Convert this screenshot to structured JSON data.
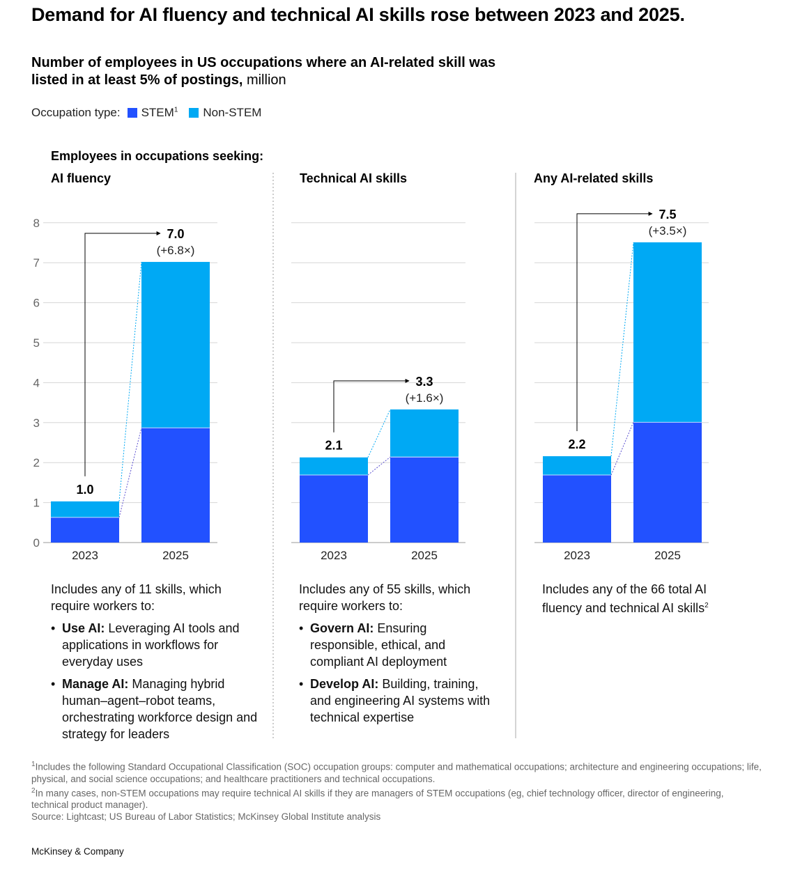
{
  "title": "Demand for AI fluency and technical AI skills rose between 2023 and 2025.",
  "subtitle": {
    "bold": "Number of employees in US occupations where an AI-related skill was listed in at least 5% of postings,",
    "unit": " million"
  },
  "legend": {
    "label": "Occupation type:",
    "items": [
      {
        "name": "STEM",
        "sup": "1",
        "color": "#2251FF"
      },
      {
        "name": "Non-STEM",
        "sup": "",
        "color": "#00A9F4"
      }
    ]
  },
  "seeking_label": "Employees in occupations seeking:",
  "chart_data": {
    "type": "bar",
    "stacked": true,
    "ylim": [
      0,
      8
    ],
    "yticks": [
      "0",
      "1",
      "2",
      "3",
      "4",
      "5",
      "6",
      "7",
      "8"
    ],
    "categories": [
      "2023",
      "2025"
    ],
    "panels": [
      {
        "title": "AI fluency",
        "stem": [
          0.63,
          2.87
        ],
        "non_stem": [
          0.4,
          4.15
        ],
        "totals": [
          "1.0",
          "7.0"
        ],
        "growth": "(+6.8×)"
      },
      {
        "title": "Technical AI skills",
        "stem": [
          1.69,
          2.14
        ],
        "non_stem": [
          0.44,
          1.19
        ],
        "totals": [
          "2.1",
          "3.3"
        ],
        "growth": "(+1.6×)"
      },
      {
        "title": "Any AI-related skills",
        "stem": [
          1.69,
          3.01
        ],
        "non_stem": [
          0.47,
          4.5
        ],
        "totals": [
          "2.2",
          "7.5"
        ],
        "growth": "(+3.5×)"
      }
    ]
  },
  "descriptions": [
    {
      "intro": "Includes any of 11 skills, which require workers to:",
      "bullets": [
        {
          "bold": "Use AI:",
          "text": " Leveraging AI tools and applications in workflows for everyday uses"
        },
        {
          "bold": "Manage AI:",
          "text": " Managing hybrid human–agent–robot teams, orchestrating workforce design and strategy for leaders"
        }
      ]
    },
    {
      "intro": "Includes any of 55 skills, which require workers to:",
      "bullets": [
        {
          "bold": "Govern AI:",
          "text": " Ensuring responsible, ethical, and compliant AI deployment"
        },
        {
          "bold": "Develop AI:",
          "text": " Building, training, and engineering AI systems with technical expertise"
        }
      ]
    },
    {
      "intro": "Includes any of the 66 total AI fluency and technical AI skills",
      "sup": "2",
      "bullets": []
    }
  ],
  "footnotes": [
    {
      "sup": "1",
      "text": "Includes the following Standard Occupational Classification (SOC) occupation groups: computer and mathematical occupations; architecture and engineering occupations; life, physical, and social science occupations; and healthcare practitioners and technical occupations."
    },
    {
      "sup": "2",
      "text": "In many cases, non-STEM occupations may require technical AI skills if they are managers of STEM occupations (eg, chief technology officer, director of engineering, technical product manager)."
    }
  ],
  "source": "Source: Lightcast; US Bureau of Labor Statistics; McKinsey Global Institute analysis",
  "brand": "McKinsey & Company"
}
